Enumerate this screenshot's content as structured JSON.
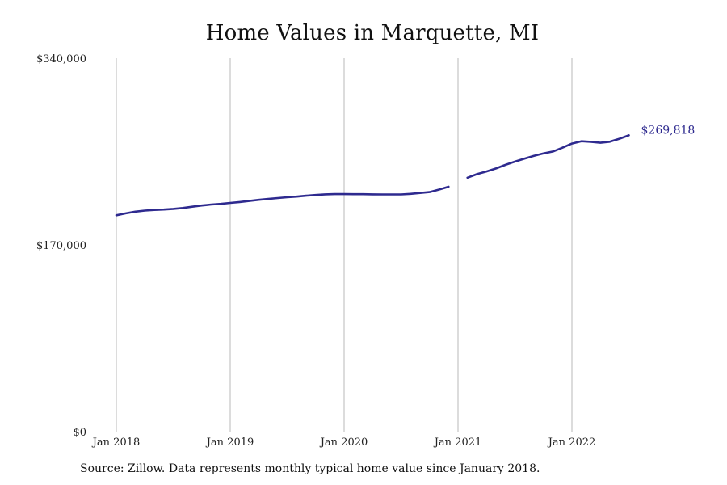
{
  "chart_data": {
    "type": "line",
    "title": "Home Values in Marquette, MI",
    "xlabel": "",
    "ylabel": "",
    "x_ticks": [
      "Jan 2018",
      "Jan 2019",
      "Jan 2020",
      "Jan 2021",
      "Jan 2022"
    ],
    "y_ticks": [
      "$0",
      "$170,000",
      "$340,000"
    ],
    "ylim": [
      0,
      340000
    ],
    "xlim": [
      "2018-01",
      "2023-01"
    ],
    "grid": "vertical gridlines at year starts",
    "line_color": "#2e2a8f",
    "end_label": "$269,818",
    "series": [
      {
        "values": [
          {
            "x": "2018-01",
            "y": 197000
          },
          {
            "x": "2018-02",
            "y": 198800
          },
          {
            "x": "2018-03",
            "y": 200300
          },
          {
            "x": "2018-04",
            "y": 201300
          },
          {
            "x": "2018-05",
            "y": 201900
          },
          {
            "x": "2018-06",
            "y": 202200
          },
          {
            "x": "2018-07",
            "y": 202800
          },
          {
            "x": "2018-08",
            "y": 203600
          },
          {
            "x": "2018-09",
            "y": 204800
          },
          {
            "x": "2018-10",
            "y": 205900
          },
          {
            "x": "2018-11",
            "y": 206800
          },
          {
            "x": "2018-12",
            "y": 207400
          },
          {
            "x": "2019-01",
            "y": 208300
          },
          {
            "x": "2019-02",
            "y": 209100
          },
          {
            "x": "2019-03",
            "y": 210000
          },
          {
            "x": "2019-04",
            "y": 211100
          },
          {
            "x": "2019-05",
            "y": 211900
          },
          {
            "x": "2019-06",
            "y": 212700
          },
          {
            "x": "2019-07",
            "y": 213400
          },
          {
            "x": "2019-08",
            "y": 214000
          },
          {
            "x": "2019-09",
            "y": 214800
          },
          {
            "x": "2019-10",
            "y": 215500
          },
          {
            "x": "2019-11",
            "y": 216100
          },
          {
            "x": "2019-12",
            "y": 216300
          },
          {
            "x": "2020-01",
            "y": 216300
          },
          {
            "x": "2020-02",
            "y": 216200
          },
          {
            "x": "2020-03",
            "y": 216200
          },
          {
            "x": "2020-04",
            "y": 216100
          },
          {
            "x": "2020-05",
            "y": 216000
          },
          {
            "x": "2020-06",
            "y": 216000
          },
          {
            "x": "2020-07",
            "y": 216000
          },
          {
            "x": "2020-08",
            "y": 216500
          },
          {
            "x": "2020-09",
            "y": 217300
          },
          {
            "x": "2020-10",
            "y": 218100
          },
          {
            "x": "2020-11",
            "y": 220400
          },
          {
            "x": "2020-12",
            "y": 223000
          },
          {
            "x": "2021-01",
            "y": null
          },
          {
            "x": "2021-02",
            "y": 231200
          },
          {
            "x": "2021-03",
            "y": 234500
          },
          {
            "x": "2021-04",
            "y": 236900
          },
          {
            "x": "2021-05",
            "y": 239600
          },
          {
            "x": "2021-06",
            "y": 242900
          },
          {
            "x": "2021-07",
            "y": 245900
          },
          {
            "x": "2021-08",
            "y": 248600
          },
          {
            "x": "2021-09",
            "y": 251200
          },
          {
            "x": "2021-10",
            "y": 253300
          },
          {
            "x": "2021-11",
            "y": 255100
          },
          {
            "x": "2021-12",
            "y": 258500
          },
          {
            "x": "2022-01",
            "y": 262300
          },
          {
            "x": "2022-02",
            "y": 264400
          },
          {
            "x": "2022-03",
            "y": 263900
          },
          {
            "x": "2022-04",
            "y": 263000
          },
          {
            "x": "2022-05",
            "y": 264000
          },
          {
            "x": "2022-06",
            "y": 266700
          },
          {
            "x": "2022-07",
            "y": 269818
          }
        ]
      }
    ]
  },
  "source_note": "Source: Zillow. Data represents monthly typical home value since January 2018."
}
